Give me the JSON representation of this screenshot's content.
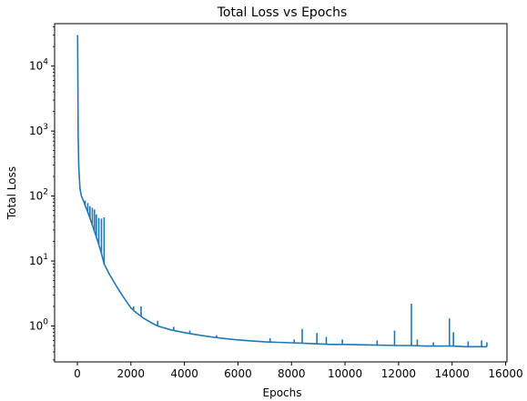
{
  "chart_data": {
    "type": "line",
    "title": "Total Loss vs Epochs",
    "xlabel": "Epochs",
    "ylabel": "Total Loss",
    "xlim": [
      -850,
      16050
    ],
    "ylim": [
      0.28,
      45000
    ],
    "yscale": "log",
    "grid": false,
    "x_ticks": [
      {
        "value": 0,
        "label": "0"
      },
      {
        "value": 2000,
        "label": "2000"
      },
      {
        "value": 4000,
        "label": "4000"
      },
      {
        "value": 6000,
        "label": "6000"
      },
      {
        "value": 8000,
        "label": "8000"
      },
      {
        "value": 10000,
        "label": "10000"
      },
      {
        "value": 12000,
        "label": "12000"
      },
      {
        "value": 14000,
        "label": "14000"
      },
      {
        "value": 16000,
        "label": "16000"
      }
    ],
    "y_ticks": [
      {
        "value": 1,
        "base": "10",
        "exp": "0"
      },
      {
        "value": 10,
        "base": "10",
        "exp": "1"
      },
      {
        "value": 100,
        "base": "10",
        "exp": "2"
      },
      {
        "value": 1000,
        "base": "10",
        "exp": "3"
      },
      {
        "value": 10000,
        "base": "10",
        "exp": "4"
      }
    ],
    "series": [
      {
        "color": "#1f77b4",
        "x": [
          0,
          10,
          30,
          50,
          70,
          100,
          150,
          200,
          250,
          300,
          400,
          500,
          600,
          700,
          800,
          900,
          1000,
          1100,
          1200,
          1400,
          1600,
          1800,
          2000,
          2200,
          2500,
          2800,
          3000,
          3500,
          4000,
          4500,
          5000,
          5500,
          6000,
          6500,
          7000,
          7500,
          8000,
          8500,
          9000,
          9500,
          10000,
          11000,
          12000,
          12500,
          13000,
          13500,
          14000,
          14500,
          15000,
          15300
        ],
        "y": [
          30000,
          28000,
          800,
          300,
          200,
          130,
          100,
          90,
          80,
          70,
          55,
          42,
          32,
          24,
          18,
          13,
          9,
          7.5,
          6.2,
          4.5,
          3.3,
          2.5,
          1.9,
          1.6,
          1.3,
          1.1,
          1.0,
          0.87,
          0.79,
          0.73,
          0.68,
          0.64,
          0.61,
          0.59,
          0.57,
          0.56,
          0.55,
          0.54,
          0.53,
          0.52,
          0.52,
          0.51,
          0.5,
          0.5,
          0.49,
          0.49,
          0.49,
          0.48,
          0.48,
          0.48
        ]
      }
    ],
    "spikes": [
      {
        "x": 180,
        "y": 95
      },
      {
        "x": 290,
        "y": 85
      },
      {
        "x": 390,
        "y": 78
      },
      {
        "x": 470,
        "y": 70
      },
      {
        "x": 560,
        "y": 66
      },
      {
        "x": 640,
        "y": 62
      },
      {
        "x": 710,
        "y": 52
      },
      {
        "x": 800,
        "y": 46
      },
      {
        "x": 900,
        "y": 45
      },
      {
        "x": 1000,
        "y": 47
      },
      {
        "x": 2100,
        "y": 2.0
      },
      {
        "x": 2380,
        "y": 2.0
      },
      {
        "x": 3000,
        "y": 1.2
      },
      {
        "x": 3600,
        "y": 0.97
      },
      {
        "x": 4200,
        "y": 0.85
      },
      {
        "x": 5200,
        "y": 0.72
      },
      {
        "x": 7200,
        "y": 0.65
      },
      {
        "x": 8100,
        "y": 0.62
      },
      {
        "x": 8400,
        "y": 0.9
      },
      {
        "x": 8950,
        "y": 0.78
      },
      {
        "x": 9300,
        "y": 0.68
      },
      {
        "x": 9900,
        "y": 0.62
      },
      {
        "x": 11200,
        "y": 0.6
      },
      {
        "x": 11850,
        "y": 0.85
      },
      {
        "x": 12480,
        "y": 2.2
      },
      {
        "x": 12700,
        "y": 0.62
      },
      {
        "x": 13300,
        "y": 0.56
      },
      {
        "x": 13900,
        "y": 1.3
      },
      {
        "x": 14050,
        "y": 0.8
      },
      {
        "x": 14600,
        "y": 0.58
      },
      {
        "x": 15100,
        "y": 0.6
      },
      {
        "x": 15300,
        "y": 0.56
      }
    ]
  }
}
